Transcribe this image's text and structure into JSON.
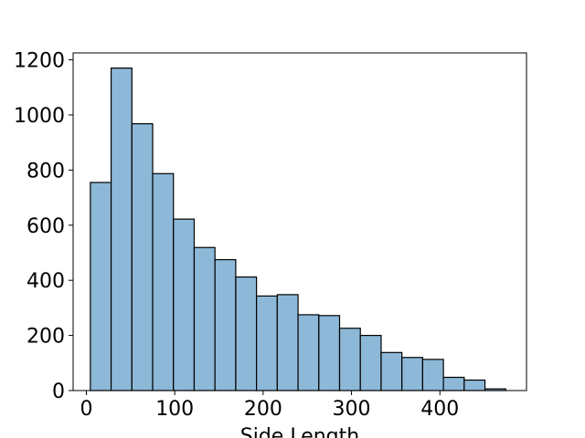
{
  "chart_data": {
    "type": "bar",
    "title": "",
    "xlabel": "Side Length",
    "ylabel": "",
    "xlim": [
      -15,
      498
    ],
    "ylim": [
      0,
      1225
    ],
    "bin_edges": [
      4.5,
      28.0,
      51.5,
      75.0,
      98.5,
      122.0,
      145.5,
      169.0,
      192.5,
      216.0,
      239.5,
      263.0,
      286.5,
      310.0,
      333.5,
      357.0,
      380.5,
      404.0,
      427.5,
      451.0,
      474.5
    ],
    "values": [
      755,
      1170,
      968,
      787,
      622,
      519,
      475,
      412,
      343,
      348,
      275,
      272,
      226,
      200,
      138,
      120,
      113,
      48,
      38,
      6
    ],
    "xticks": [
      0,
      100,
      200,
      300,
      400
    ],
    "yticks": [
      0,
      200,
      400,
      600,
      800,
      1000,
      1200
    ],
    "bar_color": "#8db8d8",
    "bar_edge_color": "#000000",
    "grid": false
  }
}
